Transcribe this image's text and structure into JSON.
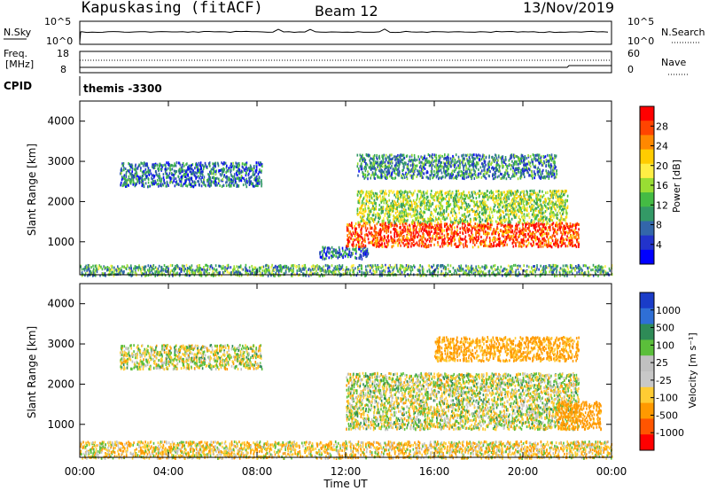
{
  "header": {
    "station": "Kapuskasing (fitACF)",
    "beam": "Beam 12",
    "date": "13/Nov/2019"
  },
  "strips": {
    "nsky": {
      "label": "N.Sky",
      "ticks": [
        "10^5",
        "10^0"
      ]
    },
    "nsearch": {
      "label": "N.Search",
      "ticks": [
        "10^5",
        "10^0"
      ]
    },
    "freq": {
      "label_line1": "Freq.",
      "label_line2": "[MHz]",
      "ticks": [
        "18",
        "8"
      ]
    },
    "nave": {
      "label": "Nave",
      "ticks": [
        "60",
        "0"
      ]
    },
    "cpid": {
      "label": "CPID",
      "value": "themis -3300"
    }
  },
  "panels": {
    "ylabel": "Slant Range [km]",
    "yticks": [
      "4000",
      "3000",
      "2000",
      "1000"
    ],
    "xticks": [
      "00:00",
      "04:00",
      "08:00",
      "12:00",
      "16:00",
      "20:00",
      "00:00"
    ],
    "xlabel": "Time UT"
  },
  "power_scale": {
    "title": "Power [dB]",
    "ticks": [
      "28",
      "24",
      "20",
      "16",
      "12",
      "8",
      "4"
    ],
    "colors": [
      "#ff0000",
      "#ff4400",
      "#ff8800",
      "#ffcc00",
      "#ffee44",
      "#99dd33",
      "#44bb44",
      "#339966",
      "#3366aa",
      "#2233cc",
      "#0000ff"
    ]
  },
  "velocity_scale": {
    "title": "Velocity [m s⁻¹]",
    "ticks": [
      "1000",
      "500",
      "100",
      "25",
      "-25",
      "-100",
      "-500",
      "-1000"
    ],
    "colors": [
      "#1a3cc8",
      "#2f6fd6",
      "#2e8b57",
      "#5bbf3a",
      "#c0c0c0",
      "#c8c8c8",
      "#ffcc33",
      "#ff9900",
      "#ff5500",
      "#ff0000"
    ]
  },
  "chart_data": {
    "type": "heatmap",
    "x_range_hours": [
      0,
      24
    ],
    "y_range_km": [
      180,
      4500
    ],
    "panels": [
      {
        "name": "Power",
        "units": "dB",
        "regions": [
          {
            "t": [
              1.8,
              8.2
            ],
            "r": [
              2400,
              3000
            ],
            "dominant_value": 6
          },
          {
            "t": [
              10.8,
              13.0
            ],
            "r": [
              600,
              900
            ],
            "dominant_value": 6
          },
          {
            "t": [
              12.0,
              22.5
            ],
            "r": [
              900,
              1500
            ],
            "dominant_value": 26
          },
          {
            "t": [
              12.5,
              22.0
            ],
            "r": [
              1500,
              2300
            ],
            "dominant_value": 14
          },
          {
            "t": [
              12.5,
              21.5
            ],
            "r": [
              2600,
              3200
            ],
            "dominant_value": 8
          },
          {
            "t": [
              0,
              24
            ],
            "r": [
              180,
              450
            ],
            "dominant_value": 10
          }
        ]
      },
      {
        "name": "Velocity",
        "units": "m s^-1",
        "regions": [
          {
            "t": [
              1.8,
              8.2
            ],
            "r": [
              2400,
              3000
            ],
            "dominant_value": 0
          },
          {
            "t": [
              12.0,
              22.5
            ],
            "r": [
              900,
              2300
            ],
            "dominant_value": 0
          },
          {
            "t": [
              16.0,
              22.5
            ],
            "r": [
              2600,
              3200
            ],
            "dominant_value": -150
          },
          {
            "t": [
              21.5,
              23.5
            ],
            "r": [
              900,
              1600
            ],
            "dominant_value": -200
          },
          {
            "t": [
              0,
              24
            ],
            "r": [
              180,
              600
            ],
            "dominant_value": -60
          }
        ]
      }
    ]
  }
}
